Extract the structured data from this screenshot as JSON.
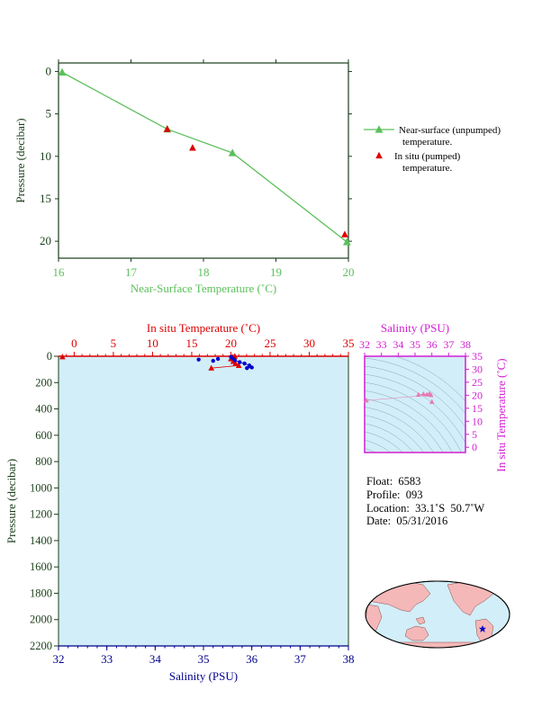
{
  "chart_data": [
    {
      "type": "line",
      "xlabel": "Near-Surface Temperature (˚C)",
      "ylabel": "Pressure (decibar)",
      "xlim": [
        16,
        20
      ],
      "ylim": [
        22,
        -1
      ],
      "x_ticks": [
        "16",
        "17",
        "18",
        "19",
        "20"
      ],
      "y_ticks": [
        "0",
        "5",
        "10",
        "15",
        "20"
      ],
      "y_tick_values": [
        0,
        5,
        10,
        15,
        20
      ],
      "legend": {
        "position": "right",
        "entries": [
          {
            "label_line1": "Near-surface (unpumped)",
            "label_line2": "temperature.",
            "color": "#5cc05c",
            "marker": "triangle-line"
          },
          {
            "label_line1": "In situ (pumped)",
            "label_line2": "temperature.",
            "color": "#dd0000",
            "marker": "triangle"
          }
        ]
      },
      "series": [
        {
          "name": "Near-surface (unpumped) temperature.",
          "color": "#5cc05c",
          "points": [
            [
              16.05,
              0.1
            ],
            [
              17.5,
              6.8
            ],
            [
              18.4,
              9.6
            ],
            [
              19.98,
              20.1
            ]
          ]
        },
        {
          "name": "In situ (pumped) temperature.",
          "color": "#dd0000",
          "points": [
            [
              17.5,
              6.8
            ],
            [
              17.85,
              9.0
            ],
            [
              19.95,
              19.2
            ]
          ]
        }
      ]
    },
    {
      "type": "scatter",
      "top_axis_label": "In situ Temperature (˚C)",
      "top_ticks": [
        "0",
        "5",
        "10",
        "15",
        "20",
        "25",
        "30",
        "35"
      ],
      "top_tick_values": [
        0,
        5,
        10,
        15,
        20,
        25,
        30,
        35
      ],
      "top_range": [
        -2,
        35
      ],
      "xlabel": "Salinity (PSU)",
      "x_ticks": [
        "32",
        "33",
        "34",
        "35",
        "36",
        "37",
        "38"
      ],
      "x_tick_values": [
        32,
        33,
        34,
        35,
        36,
        37,
        38
      ],
      "xlim": [
        32,
        38
      ],
      "ylabel": "Pressure (decibar)",
      "y_ticks": [
        "0",
        "200",
        "400",
        "600",
        "800",
        "1000",
        "1200",
        "1400",
        "1600",
        "1800",
        "2000",
        "2200"
      ],
      "y_tick_values": [
        0,
        200,
        400,
        600,
        800,
        1000,
        1200,
        1400,
        1600,
        1800,
        2000,
        2200
      ],
      "ylim": [
        2200,
        0
      ],
      "series": [
        {
          "name": "In situ Temperature",
          "color": "#dd0000",
          "points": [
            [
              20.5,
              0
            ],
            [
              20.2,
              5
            ],
            [
              20.0,
              20
            ],
            [
              20.3,
              40
            ],
            [
              20.6,
              55
            ],
            [
              21.0,
              70
            ],
            [
              17.5,
              90
            ],
            [
              -1.5,
              5
            ]
          ]
        },
        {
          "name": "Salinity",
          "color": "#0000cc",
          "points": [
            [
              35.57,
              5
            ],
            [
              35.6,
              15
            ],
            [
              35.65,
              30
            ],
            [
              35.75,
              45
            ],
            [
              35.85,
              55
            ],
            [
              35.95,
              70
            ],
            [
              36.0,
              85
            ],
            [
              35.9,
              90
            ],
            [
              35.2,
              35
            ],
            [
              34.9,
              25
            ],
            [
              35.3,
              20
            ]
          ]
        }
      ]
    },
    {
      "type": "scatter",
      "top_axis_label": "Salinity (PSU)",
      "top_ticks": [
        "32",
        "33",
        "34",
        "35",
        "36",
        "37",
        "38"
      ],
      "top_tick_values": [
        32,
        33,
        34,
        35,
        36,
        37,
        38
      ],
      "xlim": [
        32,
        38
      ],
      "ylabel": "In situ Temperature (˚C)",
      "y_ticks": [
        "0",
        "5",
        "10",
        "15",
        "20",
        "25",
        "30",
        "35"
      ],
      "y_tick_values": [
        0,
        5,
        10,
        15,
        20,
        25,
        30,
        35
      ],
      "ylim": [
        -2,
        35
      ],
      "points": [
        [
          35.2,
          20.2
        ],
        [
          35.5,
          20.5
        ],
        [
          35.7,
          20.3
        ],
        [
          35.85,
          20.6
        ],
        [
          35.95,
          20.1
        ],
        [
          36.0,
          17.5
        ],
        [
          32.1,
          18.0
        ]
      ]
    }
  ],
  "float_info": {
    "float": "Float:  6583",
    "profile": "Profile:  093",
    "location": "Location:  33.1˚S  50.7˚W",
    "date": "Date:  05/31/2016"
  },
  "colors": {
    "green": "#5cc05c",
    "red": "#dd0000",
    "blue": "#0000cc",
    "magenta": "#d21ed2",
    "plot_fill": "#d2eef8",
    "land": "#f4b8b8"
  }
}
